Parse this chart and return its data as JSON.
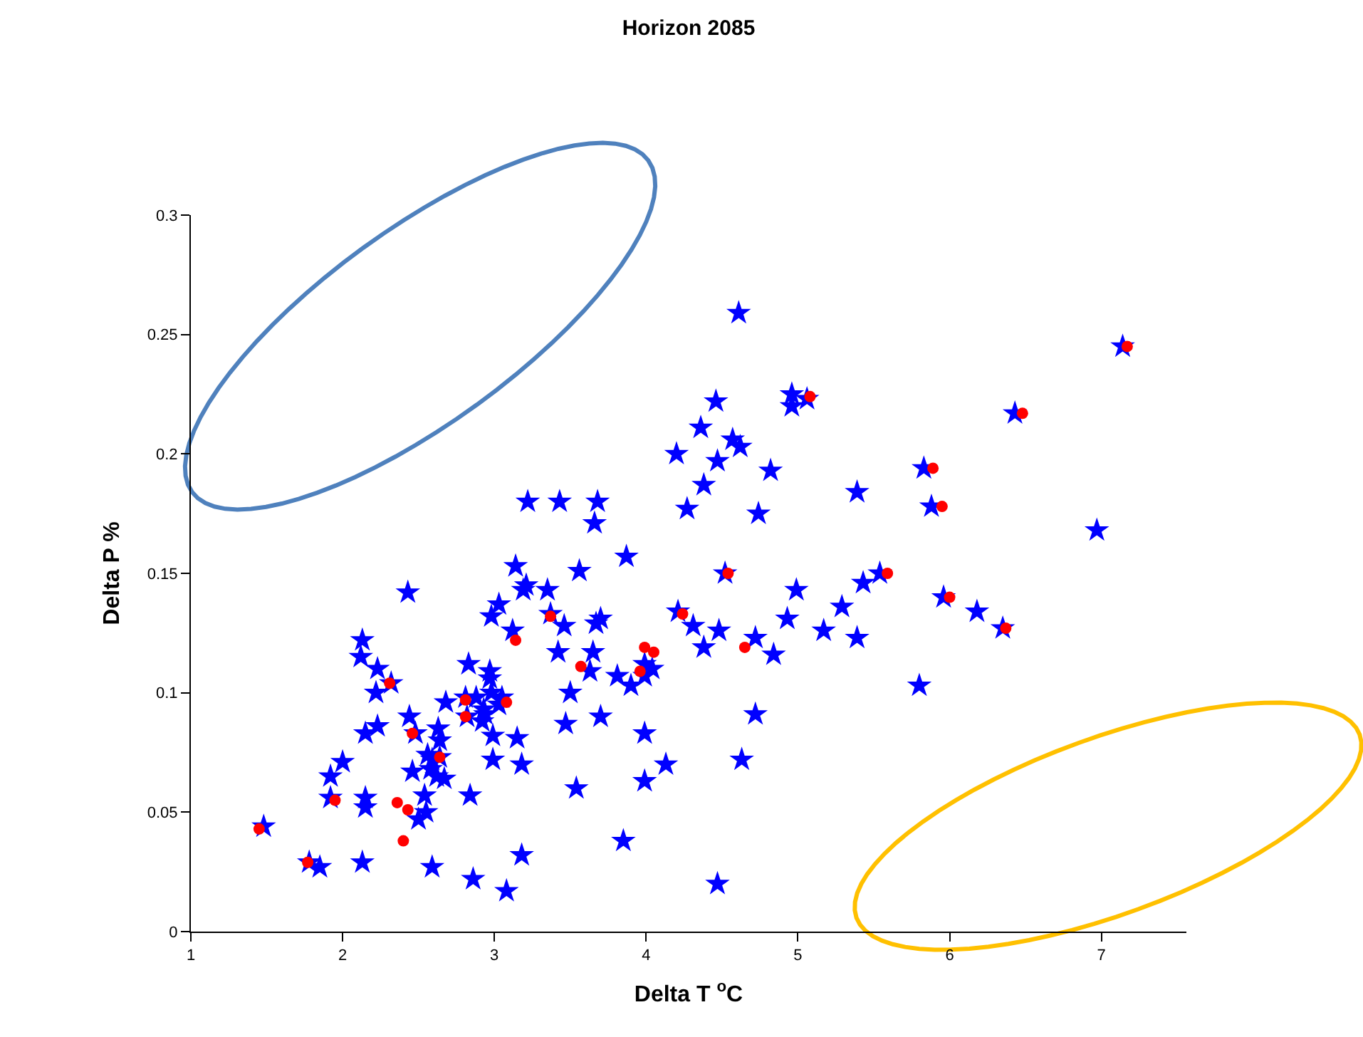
{
  "chart_data": {
    "type": "scatter",
    "title": "Horizon 2085",
    "xlabel": "Delta T $^{o}$C",
    "ylabel": "Delta P %",
    "xlim": [
      1,
      7.56
    ],
    "xticks": [
      1,
      2,
      3,
      4,
      5,
      6,
      7
    ],
    "ylim": [
      0,
      0.3
    ],
    "yticks": [
      0,
      0.05,
      0.1,
      0.15,
      0.2,
      0.25,
      0.3
    ],
    "grid": false,
    "series": [
      {
        "color": "#0000ff",
        "marker": "star",
        "x": [
          1.48,
          1.78,
          1.85,
          1.92,
          1.92,
          2.0,
          2.13,
          2.12,
          2.13,
          2.15,
          2.23,
          2.22,
          2.23,
          2.15,
          2.15,
          2.32,
          2.43,
          2.44,
          2.46,
          2.5,
          2.48,
          2.56,
          2.55,
          2.54,
          2.59,
          2.59,
          2.62,
          2.63,
          2.64,
          2.68,
          2.58,
          2.67,
          2.64,
          2.83,
          2.81,
          2.82,
          2.84,
          2.86,
          2.88,
          2.92,
          2.93,
          2.97,
          2.97,
          2.98,
          2.99,
          2.99,
          2.94,
          3.03,
          3.05,
          3.08,
          3.03,
          2.98,
          3.14,
          3.12,
          3.15,
          3.18,
          3.18,
          3.19,
          3.21,
          3.22,
          3.35,
          3.37,
          3.42,
          3.46,
          3.43,
          3.47,
          3.5,
          3.54,
          3.56,
          3.63,
          3.65,
          3.67,
          3.66,
          3.68,
          3.7,
          3.7,
          3.85,
          3.87,
          3.81,
          3.9,
          3.99,
          3.99,
          3.99,
          3.99,
          4.04,
          4.13,
          4.2,
          4.21,
          4.27,
          4.31,
          4.36,
          4.38,
          4.38,
          4.46,
          4.47,
          4.48,
          4.47,
          4.52,
          4.57,
          4.62,
          4.61,
          4.63,
          4.72,
          4.74,
          4.72,
          4.82,
          4.84,
          4.93,
          4.96,
          4.96,
          4.99,
          5.06,
          5.17,
          5.29,
          5.39,
          5.39,
          5.43,
          5.54,
          5.8,
          5.83,
          5.88,
          5.96,
          6.18,
          6.35,
          6.43,
          6.97,
          7.14
        ],
        "values": [
          0.044,
          0.029,
          0.027,
          0.065,
          0.056,
          0.071,
          0.029,
          0.115,
          0.122,
          0.083,
          0.11,
          0.1,
          0.086,
          0.056,
          0.052,
          0.104,
          0.142,
          0.09,
          0.067,
          0.047,
          0.083,
          0.074,
          0.05,
          0.057,
          0.027,
          0.072,
          0.065,
          0.085,
          0.08,
          0.096,
          0.068,
          0.064,
          0.073,
          0.112,
          0.098,
          0.09,
          0.057,
          0.022,
          0.098,
          0.088,
          0.093,
          0.106,
          0.109,
          0.1,
          0.082,
          0.072,
          0.091,
          0.095,
          0.098,
          0.017,
          0.137,
          0.132,
          0.153,
          0.126,
          0.081,
          0.07,
          0.032,
          0.143,
          0.145,
          0.18,
          0.143,
          0.133,
          0.117,
          0.128,
          0.18,
          0.087,
          0.1,
          0.06,
          0.151,
          0.109,
          0.117,
          0.129,
          0.171,
          0.18,
          0.131,
          0.09,
          0.038,
          0.157,
          0.107,
          0.103,
          0.112,
          0.107,
          0.063,
          0.083,
          0.11,
          0.07,
          0.2,
          0.134,
          0.177,
          0.128,
          0.211,
          0.119,
          0.187,
          0.222,
          0.197,
          0.126,
          0.02,
          0.15,
          0.206,
          0.203,
          0.259,
          0.072,
          0.091,
          0.175,
          0.123,
          0.193,
          0.116,
          0.131,
          0.225,
          0.22,
          0.143,
          0.223,
          0.126,
          0.136,
          0.184,
          0.123,
          0.146,
          0.15,
          0.103,
          0.194,
          0.178,
          0.14,
          0.134,
          0.127,
          0.217,
          0.168,
          0.245
        ]
      },
      {
        "color": "#ff0000",
        "marker": "circle",
        "x": [
          1.45,
          1.77,
          1.95,
          2.31,
          2.46,
          2.64,
          2.81,
          2.81,
          3.08,
          2.36,
          2.43,
          2.4,
          5.08,
          4.54,
          3.37,
          3.14,
          3.57,
          3.99,
          4.05,
          3.96,
          4.24,
          4.65,
          7.17,
          6.48,
          5.89,
          5.95,
          5.59,
          6.0,
          6.37
        ],
        "values": [
          0.043,
          0.029,
          0.055,
          0.104,
          0.083,
          0.073,
          0.097,
          0.09,
          0.096,
          0.054,
          0.051,
          0.038,
          0.224,
          0.15,
          0.132,
          0.122,
          0.111,
          0.119,
          0.117,
          0.109,
          0.133,
          0.119,
          0.245,
          0.217,
          0.194,
          0.178,
          0.15,
          0.14,
          0.127
        ]
      }
    ]
  }
}
